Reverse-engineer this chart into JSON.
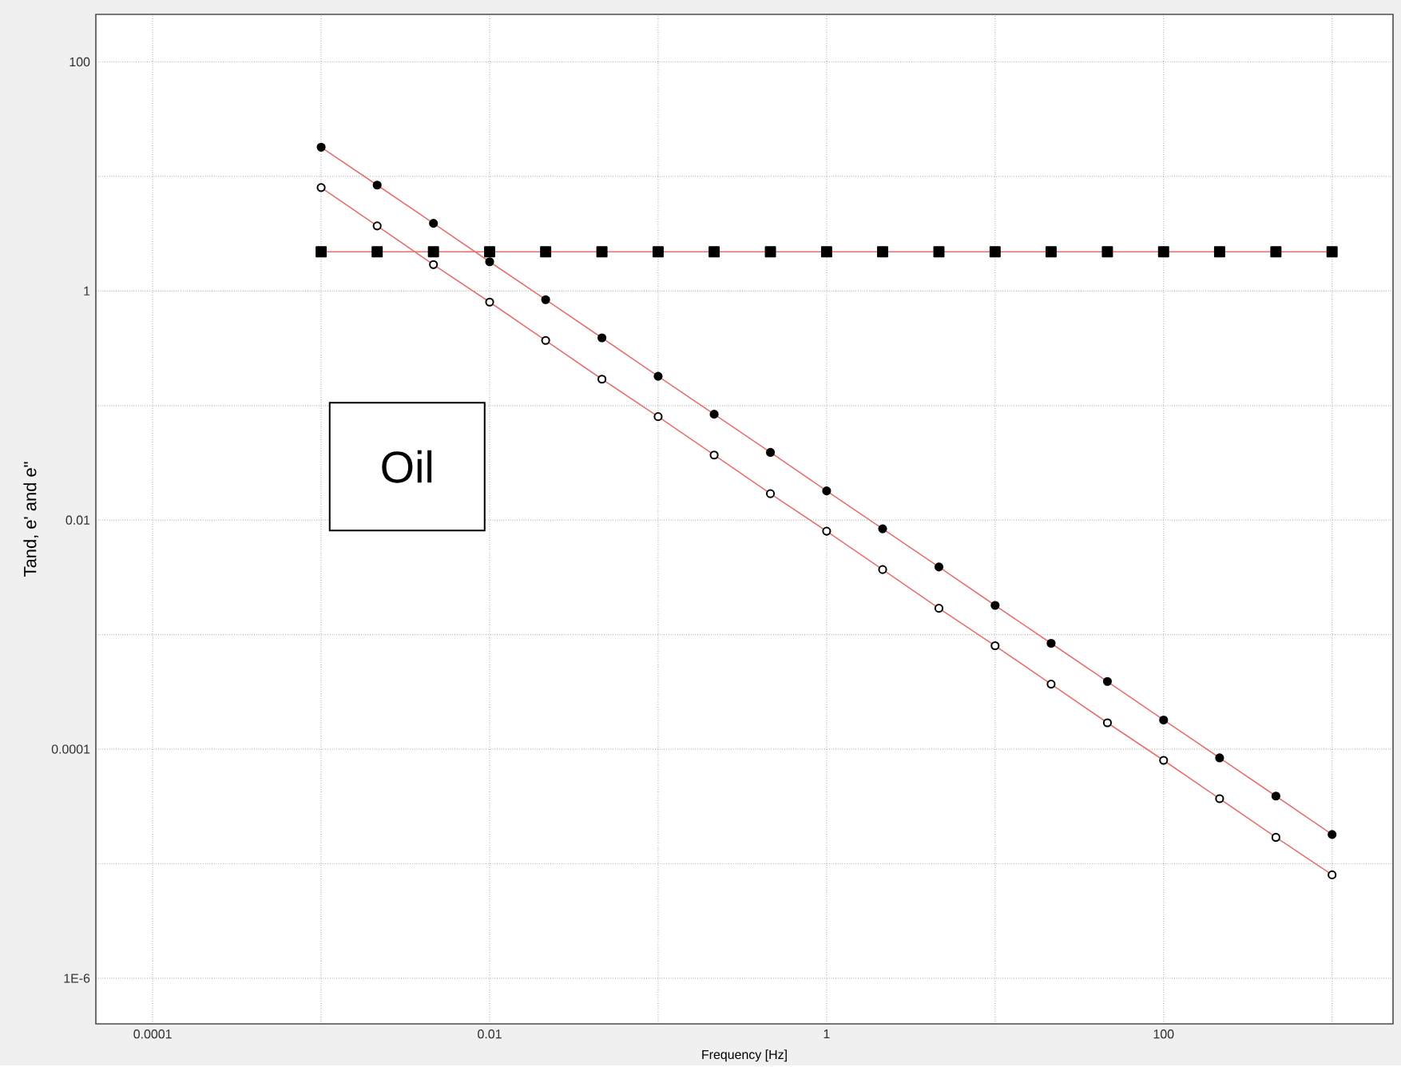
{
  "chart_data": {
    "type": "line",
    "xlabel": "Frequency [Hz]",
    "ylabel": "Tand, e' and e\"",
    "annotations": [
      "Oil"
    ],
    "log": "xy",
    "grid": true,
    "line_style": "solid",
    "xlim": [
      4.6e-05,
      2300
    ],
    "ylim": [
      4e-07,
      260
    ],
    "xticks": [
      0.0001,
      {
        "value": 0.001,
        "label": null
      },
      0.01,
      {
        "value": 0.1,
        "label": null
      },
      1,
      {
        "value": 10,
        "label": null
      },
      100,
      {
        "value": 1000,
        "label": null
      }
    ],
    "yticks": [
      {
        "value": 1e-06,
        "label": "1E-6"
      },
      {
        "value": 1e-05,
        "label": null
      },
      0.0001,
      {
        "value": 0.001,
        "label": null
      },
      0.01,
      {
        "value": 0.1,
        "label": null
      },
      1,
      {
        "value": 10,
        "label": null
      },
      100
    ],
    "x": [
      0.001,
      0.00215,
      0.00464,
      0.01,
      0.0215,
      0.0464,
      0.1,
      0.215,
      0.464,
      1,
      2.15,
      4.64,
      10,
      21.5,
      46.4,
      100,
      215,
      464,
      1000
    ],
    "series": [
      {
        "color": "#e87070",
        "marker": "circle",
        "values": [
          18,
          8.4,
          3.9,
          1.8,
          0.84,
          0.39,
          0.18,
          0.084,
          0.039,
          0.018,
          0.0084,
          0.0039,
          0.0018,
          0.00084,
          0.00039,
          0.00018,
          8.4e-05,
          3.9e-05,
          1.8e-05
        ]
      },
      {
        "color": "#e87070",
        "marker": "circle",
        "values": [
          8,
          3.7,
          1.7,
          0.8,
          0.37,
          0.17,
          0.08,
          0.037,
          0.017,
          0.008,
          0.0037,
          0.0017,
          0.0008,
          0.00037,
          0.00017,
          8e-05,
          3.7e-05,
          1.7e-05,
          8e-06
        ]
      },
      {
        "color": "#e87070",
        "marker": "square",
        "values": [
          2.2,
          2.2,
          2.2,
          2.2,
          2.2,
          2.2,
          2.2,
          2.2,
          2.2,
          2.2,
          2.2,
          2.2,
          2.2,
          2.2,
          2.2,
          2.2,
          2.2,
          2.2,
          2.2
        ]
      }
    ]
  }
}
